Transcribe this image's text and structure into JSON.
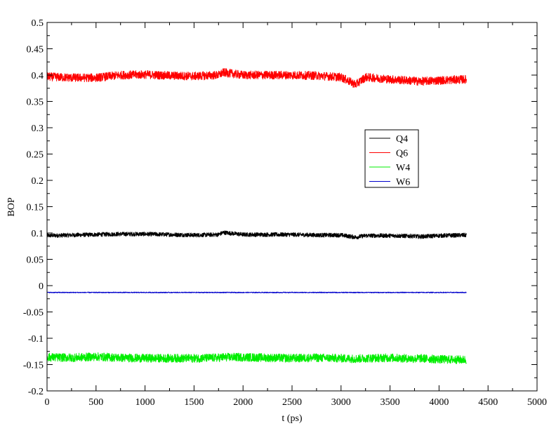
{
  "chart_data": {
    "type": "line",
    "title": "",
    "xlabel": "t (ps)",
    "ylabel": "BOP",
    "xlim": [
      0,
      5000
    ],
    "ylim": [
      -0.2,
      0.5
    ],
    "x_ticks": [
      0,
      500,
      1000,
      1500,
      2000,
      2500,
      3000,
      3500,
      4000,
      4500,
      5000
    ],
    "x_tick_labels": [
      "0",
      "500",
      "1000",
      "1500",
      "2000",
      "2500",
      "3000",
      "3500",
      "4000",
      "4500",
      "5000"
    ],
    "y_ticks": [
      -0.2,
      -0.15,
      -0.1,
      -0.05,
      0,
      0.05,
      0.1,
      0.15,
      0.2,
      0.25,
      0.3,
      0.35,
      0.4,
      0.45,
      0.5
    ],
    "y_tick_labels": [
      "-0.2",
      "-0.15",
      "-0.1",
      "-0.05",
      "0",
      "0.05",
      "0.1",
      "0.15",
      "0.2",
      "0.25",
      "0.3",
      "0.35",
      "0.4",
      "0.45",
      "0.5"
    ],
    "grid": false,
    "legend_position": "center-right",
    "x": [
      0,
      250,
      500,
      750,
      1000,
      1250,
      1500,
      1750,
      1800,
      2000,
      2250,
      2500,
      2750,
      3000,
      3150,
      3250,
      3500,
      3750,
      3800,
      4000,
      4280
    ],
    "series": [
      {
        "name": "Q4",
        "color": "#000000",
        "noise": 0.004,
        "values": [
          0.095,
          0.096,
          0.097,
          0.098,
          0.098,
          0.097,
          0.096,
          0.097,
          0.101,
          0.097,
          0.097,
          0.097,
          0.096,
          0.096,
          0.092,
          0.095,
          0.095,
          0.094,
          0.093,
          0.095,
          0.096
        ]
      },
      {
        "name": "Q6",
        "color": "#ff0000",
        "noise": 0.008,
        "values": [
          0.397,
          0.395,
          0.395,
          0.4,
          0.401,
          0.399,
          0.398,
          0.4,
          0.405,
          0.4,
          0.4,
          0.4,
          0.399,
          0.396,
          0.382,
          0.396,
          0.392,
          0.389,
          0.388,
          0.39,
          0.392
        ]
      },
      {
        "name": "W4",
        "color": "#00ee00",
        "noise": 0.008,
        "values": [
          -0.136,
          -0.137,
          -0.135,
          -0.137,
          -0.138,
          -0.138,
          -0.138,
          -0.137,
          -0.136,
          -0.136,
          -0.137,
          -0.138,
          -0.137,
          -0.138,
          -0.139,
          -0.138,
          -0.137,
          -0.139,
          -0.138,
          -0.14,
          -0.141
        ]
      },
      {
        "name": "W6",
        "color": "#0000cc",
        "noise": 0.0008,
        "values": [
          -0.013,
          -0.013,
          -0.013,
          -0.013,
          -0.013,
          -0.013,
          -0.013,
          -0.013,
          -0.013,
          -0.013,
          -0.013,
          -0.013,
          -0.013,
          -0.013,
          -0.013,
          -0.013,
          -0.013,
          -0.013,
          -0.013,
          -0.013,
          -0.013
        ]
      }
    ]
  }
}
